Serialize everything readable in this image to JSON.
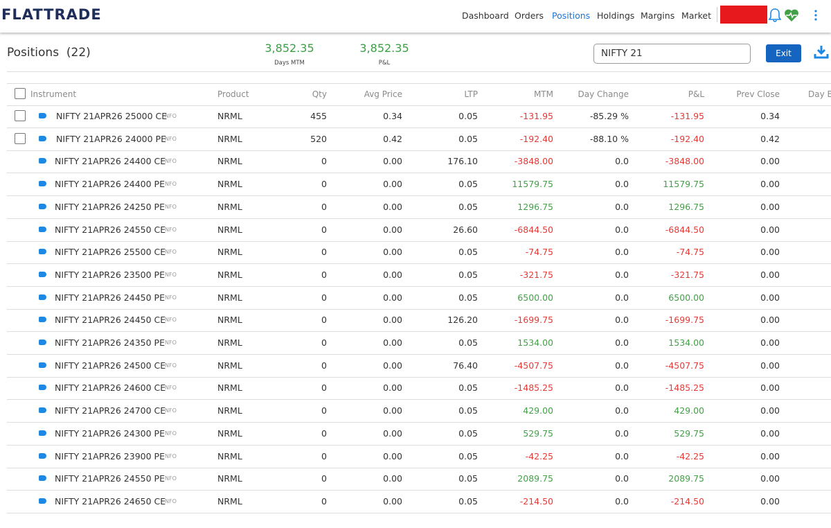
{
  "header": {
    "logo": "FLATTRADE",
    "nav": [
      "Dashboard",
      "Orders",
      "Positions",
      "Holdings",
      "Margins",
      "Market"
    ],
    "active_nav": 2
  },
  "summary": {
    "title": "Positions",
    "count": "(22)",
    "stats": [
      {
        "value": "3,852.35",
        "label": "Days MTM"
      },
      {
        "value": "3,852.35",
        "label": "P&L"
      }
    ],
    "search": "NIFTY 21",
    "button": "Exit"
  },
  "table": {
    "columns": [
      "Instrument",
      "Product",
      "Qty",
      "Avg Price",
      "LTP",
      "MTM",
      "Day Change",
      "P&L",
      "Prev Close",
      "Day B"
    ],
    "rows": [
      {
        "checkbox": true,
        "cells": [
          "NIFTY 21APR26 25000 CE",
          "NFO",
          "NRML",
          "455",
          "0.34",
          "0.05",
          "-131.95",
          "-85.29 %",
          "-131.95",
          "0.34"
        ]
      },
      {
        "checkbox": true,
        "cells": [
          "NIFTY 21APR26 24000 PE",
          "NFO",
          "NRML",
          "520",
          "0.42",
          "0.05",
          "-192.40",
          "-88.10 %",
          "-192.40",
          "0.42"
        ]
      },
      {
        "checkbox": false,
        "cells": [
          "NIFTY 21APR26 24400 CE",
          "NFO",
          "NRML",
          "0",
          "0.00",
          "176.10",
          "-3848.00",
          "0.0",
          "-3848.00",
          "0.00"
        ]
      },
      {
        "checkbox": false,
        "cells": [
          "NIFTY 21APR26 24400 PE",
          "NFO",
          "NRML",
          "0",
          "0.00",
          "0.05",
          "11579.75",
          "0.0",
          "11579.75",
          "0.00"
        ]
      },
      {
        "checkbox": false,
        "cells": [
          "NIFTY 21APR26 24250 PE",
          "NFO",
          "NRML",
          "0",
          "0.00",
          "0.05",
          "1296.75",
          "0.0",
          "1296.75",
          "0.00"
        ]
      },
      {
        "checkbox": false,
        "cells": [
          "NIFTY 21APR26 24550 CE",
          "NFO",
          "NRML",
          "0",
          "0.00",
          "26.60",
          "-6844.50",
          "0.0",
          "-6844.50",
          "0.00"
        ]
      },
      {
        "checkbox": false,
        "cells": [
          "NIFTY 21APR26 25500 CE",
          "NFO",
          "NRML",
          "0",
          "0.00",
          "0.05",
          "-74.75",
          "0.0",
          "-74.75",
          "0.00"
        ]
      },
      {
        "checkbox": false,
        "cells": [
          "NIFTY 21APR26 23500 PE",
          "NFO",
          "NRML",
          "0",
          "0.00",
          "0.05",
          "-321.75",
          "0.0",
          "-321.75",
          "0.00"
        ]
      },
      {
        "checkbox": false,
        "cells": [
          "NIFTY 21APR26 24450 PE",
          "NFO",
          "NRML",
          "0",
          "0.00",
          "0.05",
          "6500.00",
          "0.0",
          "6500.00",
          "0.00"
        ]
      },
      {
        "checkbox": false,
        "cells": [
          "NIFTY 21APR26 24450 CE",
          "NFO",
          "NRML",
          "0",
          "0.00",
          "126.20",
          "-1699.75",
          "0.0",
          "-1699.75",
          "0.00"
        ]
      },
      {
        "checkbox": false,
        "cells": [
          "NIFTY 21APR26 24350 PE",
          "NFO",
          "NRML",
          "0",
          "0.00",
          "0.05",
          "1534.00",
          "0.0",
          "1534.00",
          "0.00"
        ]
      },
      {
        "checkbox": false,
        "cells": [
          "NIFTY 21APR26 24500 CE",
          "NFO",
          "NRML",
          "0",
          "0.00",
          "76.40",
          "-4507.75",
          "0.0",
          "-4507.75",
          "0.00"
        ]
      },
      {
        "checkbox": false,
        "cells": [
          "NIFTY 21APR26 24600 CE",
          "NFO",
          "NRML",
          "0",
          "0.00",
          "0.05",
          "-1485.25",
          "0.0",
          "-1485.25",
          "0.00"
        ]
      },
      {
        "checkbox": false,
        "cells": [
          "NIFTY 21APR26 24700 CE",
          "NFO",
          "NRML",
          "0",
          "0.00",
          "0.05",
          "429.00",
          "0.0",
          "429.00",
          "0.00"
        ]
      },
      {
        "checkbox": false,
        "cells": [
          "NIFTY 21APR26 24300 PE",
          "NFO",
          "NRML",
          "0",
          "0.00",
          "0.05",
          "529.75",
          "0.0",
          "529.75",
          "0.00"
        ]
      },
      {
        "checkbox": false,
        "cells": [
          "NIFTY 21APR26 23900 PE",
          "NFO",
          "NRML",
          "0",
          "0.00",
          "0.05",
          "-42.25",
          "0.0",
          "-42.25",
          "0.00"
        ]
      },
      {
        "checkbox": false,
        "cells": [
          "NIFTY 21APR26 24550 PE",
          "NFO",
          "NRML",
          "0",
          "0.00",
          "0.05",
          "2089.75",
          "0.0",
          "2089.75",
          "0.00"
        ]
      },
      {
        "checkbox": false,
        "cells": [
          "NIFTY 21APR26 24650 CE",
          "NFO",
          "NRML",
          "0",
          "0.00",
          "0.05",
          "-214.50",
          "0.0",
          "-214.50",
          "0.00"
        ]
      }
    ]
  }
}
